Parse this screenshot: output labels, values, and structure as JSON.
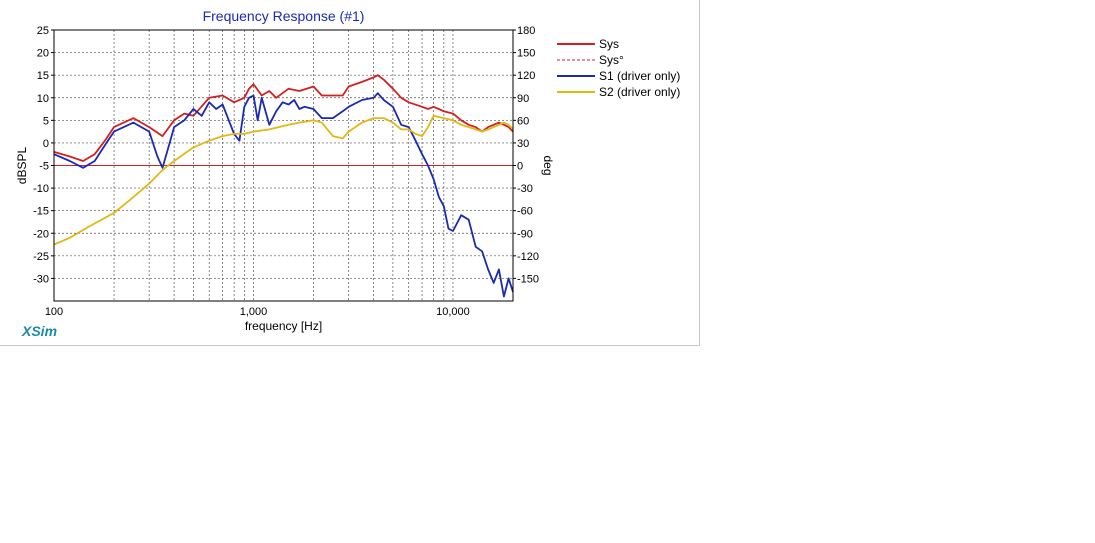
{
  "chart_data": {
    "type": "line",
    "title": "Frequency Response (#1)",
    "xlabel": "frequency [Hz]",
    "ylabel": "dBSPL",
    "y2label": "deg",
    "xscale": "log",
    "xlim": [
      100,
      20000
    ],
    "ylim": [
      -35,
      25
    ],
    "y2lim": [
      -180,
      180
    ],
    "x_tick_labels": [
      {
        "value": 100,
        "label": "100"
      },
      {
        "value": 1000,
        "label": "1,000"
      },
      {
        "value": 10000,
        "label": "10,000"
      }
    ],
    "y_ticks": [
      25,
      20,
      15,
      10,
      5,
      0,
      -5,
      -10,
      -15,
      -20,
      -25,
      -30
    ],
    "y2_ticks": [
      180,
      150,
      120,
      90,
      60,
      30,
      0,
      -30,
      -60,
      -90,
      -120,
      -150
    ],
    "grid": true,
    "legend_position": "right",
    "series": [
      {
        "name": "Sys",
        "color": "#d42020",
        "style": "solid",
        "x": [
          100,
          120,
          140,
          160,
          180,
          200,
          250,
          300,
          350,
          400,
          450,
          500,
          600,
          700,
          800,
          900,
          950,
          1000,
          1100,
          1200,
          1300,
          1500,
          1700,
          2000,
          2200,
          2500,
          2800,
          3000,
          3500,
          4000,
          4200,
          4500,
          5000,
          5500,
          6000,
          7000,
          7500,
          8000,
          8500,
          9000,
          10000,
          11000,
          12000,
          13000,
          14000,
          15000,
          16000,
          17000,
          18000,
          19000,
          20000
        ],
        "y": [
          -2,
          -3,
          -4,
          -2.5,
          0.5,
          3.5,
          5.5,
          3.5,
          1.5,
          5,
          6.5,
          6,
          10,
          10.5,
          9,
          10,
          12,
          13,
          10.5,
          11.5,
          10,
          12,
          11.5,
          12.5,
          10.5,
          10.5,
          10.5,
          12.5,
          13.5,
          14.5,
          15,
          14,
          12,
          10,
          9,
          8,
          7.5,
          8,
          7.5,
          7,
          6.5,
          5,
          4,
          3.5,
          2.5,
          3.5,
          4,
          4.5,
          4,
          3.5,
          2.5
        ]
      },
      {
        "name": "Sys°",
        "color": "#d42020",
        "style": "dashed",
        "x": [
          100,
          20000
        ],
        "y": [
          0,
          0
        ]
      },
      {
        "name": "S1 (driver only)",
        "color": "#1a2ab4",
        "style": "solid",
        "x": [
          100,
          120,
          140,
          160,
          180,
          200,
          250,
          300,
          330,
          350,
          380,
          400,
          450,
          500,
          550,
          600,
          650,
          700,
          800,
          850,
          900,
          950,
          1000,
          1050,
          1100,
          1200,
          1300,
          1400,
          1500,
          1600,
          1700,
          1800,
          2000,
          2200,
          2500,
          2800,
          3000,
          3500,
          4000,
          4200,
          4500,
          5000,
          5500,
          6000,
          6500,
          7000,
          7500,
          8000,
          8500,
          9000,
          9500,
          10000,
          11000,
          12000,
          13000,
          14000,
          15000,
          16000,
          17000,
          18000,
          19000,
          20000
        ],
        "y": [
          -2.5,
          -4,
          -5.5,
          -4,
          -0.5,
          2.5,
          4.5,
          2.5,
          -3,
          -5.5,
          0,
          3.5,
          5,
          7.5,
          6,
          9,
          7.5,
          8.5,
          2,
          0.5,
          8,
          10,
          10.5,
          5,
          10,
          4,
          7,
          9,
          8.5,
          9.5,
          7.5,
          8,
          7.5,
          5.5,
          5.5,
          7,
          8,
          9.5,
          10,
          11,
          9.5,
          8,
          4,
          3.5,
          0.5,
          -2.5,
          -5,
          -8,
          -12,
          -14,
          -19,
          -19.5,
          -16,
          -17,
          -23,
          -24,
          -28,
          -31,
          -28,
          -34,
          -30,
          -33
        ]
      },
      {
        "name": "S2 (driver only)",
        "color": "#e2b814",
        "style": "solid",
        "x": [
          100,
          120,
          150,
          200,
          250,
          300,
          350,
          400,
          500,
          600,
          700,
          800,
          900,
          1000,
          1200,
          1500,
          1700,
          2000,
          2200,
          2500,
          2800,
          3000,
          3500,
          4000,
          4500,
          5000,
          5500,
          6000,
          6500,
          7000,
          7500,
          8000,
          9000,
          10000,
          11000,
          12000,
          13000,
          14000,
          15000,
          16000,
          17000,
          18000,
          19000,
          20000
        ],
        "y": [
          -22.5,
          -21,
          -18.5,
          -15.5,
          -12,
          -9,
          -6,
          -4,
          -1,
          0.5,
          1.5,
          2,
          2,
          2.5,
          3,
          4,
          4.5,
          5,
          4.5,
          1.5,
          1,
          2.5,
          4.5,
          5.5,
          5.5,
          4.5,
          3,
          3,
          2,
          1.5,
          3.5,
          6,
          5.5,
          5,
          4,
          3.5,
          3,
          2.5,
          3,
          3.5,
          4,
          4.5,
          4,
          3
        ]
      }
    ],
    "reference_lines": [
      {
        "axis": "y2",
        "value": 0,
        "color": "#d42020"
      }
    ]
  },
  "branding": "XSim"
}
